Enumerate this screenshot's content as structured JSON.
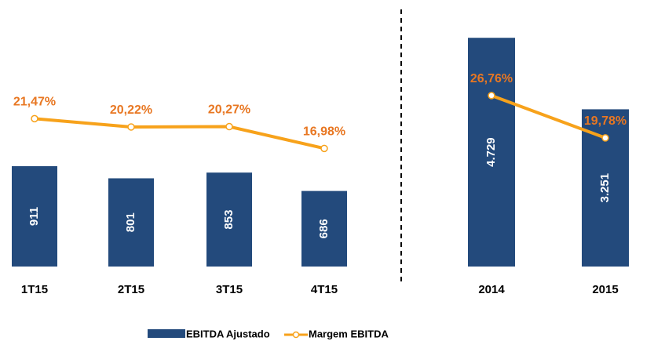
{
  "chart_data": [
    {
      "type": "bar_line",
      "categories": [
        "1T15",
        "2T15",
        "3T15",
        "4T15"
      ],
      "series": [
        {
          "name": "EBITDA Ajustado",
          "color": "#234a7c",
          "kind": "bar",
          "values": [
            911,
            801,
            853,
            686
          ]
        },
        {
          "name": "Margem EBITDA",
          "color": "#f7a21b",
          "kind": "line",
          "values": [
            21.47,
            20.22,
            20.27,
            16.98
          ],
          "value_labels": [
            "21,47%",
            "20,22%",
            "20,27%",
            "16,98%"
          ]
        }
      ]
    },
    {
      "type": "bar_line",
      "categories": [
        "2014",
        "2015"
      ],
      "series": [
        {
          "color": "#234a7c",
          "kind": "bar",
          "values": [
            4729,
            3251
          ],
          "value_labels": [
            "4.729",
            "3.251"
          ]
        },
        {
          "color": "#f7a21b",
          "kind": "line",
          "values": [
            26.76,
            19.78
          ],
          "value_labels": [
            "26,76%",
            "19,78%"
          ]
        }
      ]
    }
  ]
}
